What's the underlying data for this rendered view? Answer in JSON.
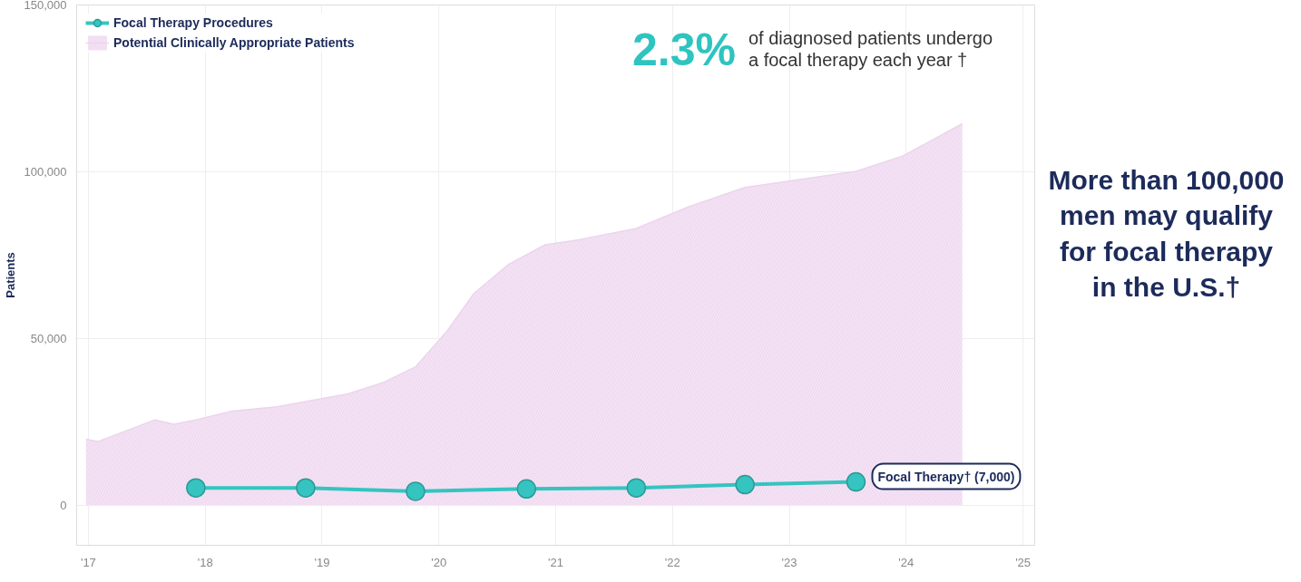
{
  "chart_data": {
    "type": "area",
    "ylabel": "Patients",
    "xlim": [
      2016.9,
      2025.1
    ],
    "xticks": [
      {
        "value": 2017,
        "label": "'17"
      },
      {
        "value": 2018,
        "label": "'18"
      },
      {
        "value": 2019,
        "label": "'19"
      },
      {
        "value": 2020,
        "label": "'20"
      },
      {
        "value": 2021,
        "label": "'21"
      },
      {
        "value": 2022,
        "label": "'22"
      },
      {
        "value": 2023,
        "label": "'23"
      },
      {
        "value": 2024,
        "label": "'24"
      },
      {
        "value": 2025,
        "label": "'25"
      }
    ],
    "ylim": [
      -12000,
      150000
    ],
    "yticks": [
      0,
      {
        "value": 50000,
        "label": "50,000"
      },
      {
        "value": 100000,
        "label": "100,000"
      },
      {
        "value": 150000,
        "label": "150,000"
      }
    ],
    "grid": true,
    "legend": "top left",
    "series": [
      {
        "name": "Focal Therapy Procedures",
        "type": "line",
        "marker": "circle",
        "color": "#35c4c0",
        "x": [
          2017.92,
          2018.86,
          2019.8,
          2020.75,
          2021.69,
          2022.62,
          2023.57
        ],
        "values": [
          5200,
          5200,
          4200,
          4900,
          5200,
          6200,
          7000
        ]
      },
      {
        "name": "Potential Clinically Appropriate Patients",
        "color": "#f4e2f5",
        "x": [
          2016.98,
          2017.08,
          2017.57,
          2017.73,
          2017.92,
          2018.23,
          2018.61,
          2018.86,
          2019.22,
          2019.53,
          2019.8,
          2020.07,
          2020.3,
          2020.6,
          2020.91,
          2021.21,
          2021.69,
          2022.13,
          2022.62,
          2023.05,
          2023.57,
          2023.97,
          2024.48
        ],
        "values": [
          19800,
          19100,
          25600,
          24300,
          25600,
          28200,
          29500,
          31100,
          33400,
          36900,
          41500,
          52200,
          63500,
          72300,
          78100,
          79700,
          83000,
          89400,
          95300,
          97500,
          100100,
          104700,
          114400
        ]
      }
    ],
    "annotations": [
      "2.3%",
      "of diagnosed patients undergo a focal therapy each year †",
      "More than 100,000 men may qualify for focal therapy in the U.S.†",
      {
        "text": "Focal Therapy† (7,000)",
        "x": 2023.57,
        "y": 7000
      }
    ]
  }
}
